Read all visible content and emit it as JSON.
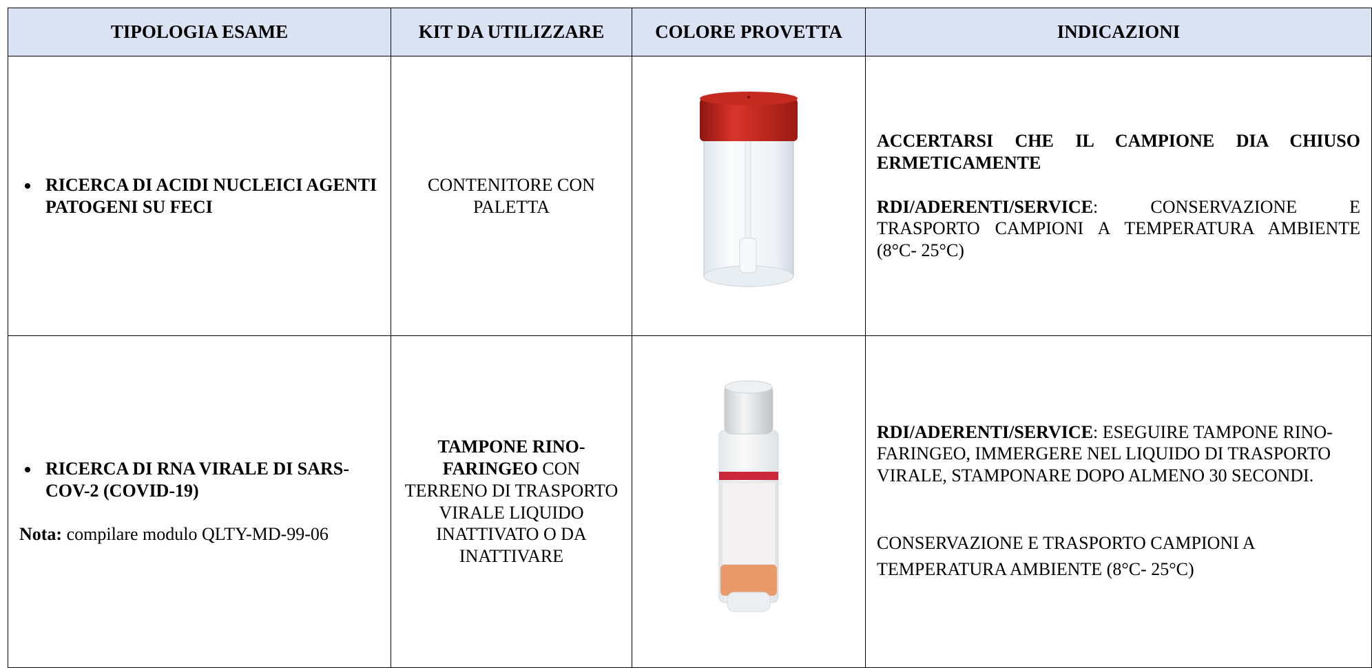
{
  "table": {
    "header": [
      "TIPOLOGIA ESAME",
      "KIT DA UTILIZZARE",
      "COLORE PROVETTA",
      "INDICAZIONI"
    ],
    "rows": [
      {
        "exam": "RICERCA DI ACIDI NUCLEICI AGENTI PATOGENI SU FECI",
        "kit": "CONTENITORE CON PALETTA",
        "indications": {
          "first": "ACCERTARSI CHE IL CAMPIONE DIA CHIUSO ERMETICAMENTE",
          "second_bold": "RDI/ADERENTI/SERVICE",
          "second_text": ": CONSERVAZIONE E TRASPORTO CAMPIONI A TEMPERATURA AMBIENTE (8°C- 25°C)"
        }
      },
      {
        "exam": "RICERCA DI RNA VIRALE DI SARS-COV-2 (COVID-19)",
        "note_label": "Nota:",
        "note_text": "compilare modulo QLTY-MD-99-06",
        "kit_bold": "TAMPONE RINO-FARINGEO",
        "kit_text": "CON TERRENO DI TRASPORTO VIRALE LIQUIDO INATTIVATO O DA INATTIVARE",
        "indications": {
          "first_bold": "RDI/ADERENTI/SERVICE",
          "first_text": ": ESEGUIRE TAMPONE RINO-FARINGEO, IMMERGERE NEL LIQUIDO DI TRASPORTO VIRALE, STAMPONARE DOPO ALMENO 30 SECONDI.",
          "second": "CONSERVAZIONE E TRASPORTO CAMPIONI A TEMPERATURA AMBIENTE (8°C- 25°C)"
        }
      }
    ]
  }
}
